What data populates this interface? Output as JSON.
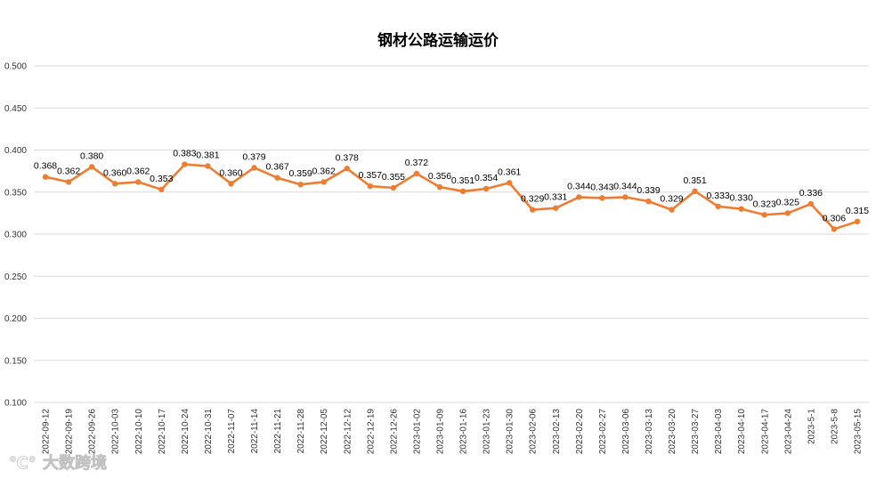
{
  "chart_data": {
    "type": "line",
    "title": "钢材公路运输运价",
    "xlabel": "",
    "ylabel": "",
    "ylim": [
      0.1,
      0.5
    ],
    "yticks": [
      "0.100",
      "0.150",
      "0.200",
      "0.250",
      "0.300",
      "0.350",
      "0.400",
      "0.450",
      "0.500"
    ],
    "grid": true,
    "legend": "none",
    "categories": [
      "2022-09-12",
      "2022-09-19",
      "2022-09-26",
      "2022-10-03",
      "2022-10-10",
      "2022-10-17",
      "2022-10-24",
      "2022-10-31",
      "2022-11-07",
      "2022-11-14",
      "2022-11-21",
      "2022-11-28",
      "2022-12-05",
      "2022-12-12",
      "2022-12-19",
      "2022-12-26",
      "2023-01-02",
      "2023-01-09",
      "2023-01-16",
      "2023-01-23",
      "2023-01-30",
      "2023-02-06",
      "2023-02-13",
      "2023-02-20",
      "2023-02-27",
      "2023-03-06",
      "2023-03-13",
      "2023-03-20",
      "2023-03-27",
      "2023-04-03",
      "2023-04-10",
      "2023-04-17",
      "2023-04-24",
      "2023-5-1",
      "2023-5-8",
      "2023-05-15"
    ],
    "series": [
      {
        "name": "钢材公路运输运价",
        "color": "#ed7d31",
        "values": [
          0.368,
          0.362,
          0.38,
          0.36,
          0.362,
          0.353,
          0.383,
          0.381,
          0.36,
          0.379,
          0.367,
          0.359,
          0.362,
          0.378,
          0.357,
          0.355,
          0.372,
          0.356,
          0.351,
          0.354,
          0.361,
          0.329,
          0.331,
          0.344,
          0.343,
          0.344,
          0.339,
          0.329,
          0.351,
          0.333,
          0.33,
          0.323,
          0.325,
          0.336,
          0.306,
          0.315
        ],
        "labels": [
          "0.368",
          "0.362",
          "0.380",
          "0.360",
          "0.362",
          "0.353",
          "0.383",
          "0.381",
          "0.360",
          "0.379",
          "0.367",
          "0.359",
          "0.362",
          "0.378",
          "0.357",
          "0.355",
          "0.372",
          "0.356",
          "0.351",
          "0.354",
          "0.361",
          "0.329",
          "0.331",
          "0.344",
          "0.343",
          "0.344",
          "0.339",
          "0.329",
          "0.351",
          "0.333",
          "0.330",
          "0.323",
          "0.325",
          "0.336",
          "0.306",
          "0.315"
        ]
      }
    ]
  },
  "watermark": "大数跨境"
}
